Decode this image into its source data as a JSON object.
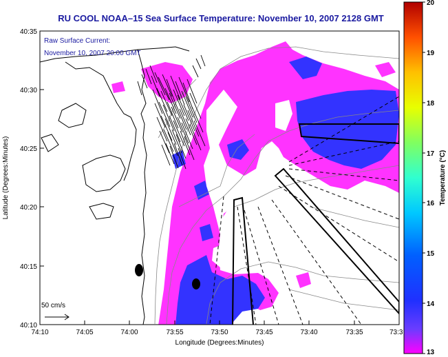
{
  "title": "RU COOL  NOAA–15  Sea Surface Temperature:  November 10, 2007 2128 GMT",
  "caption": {
    "line1": "Raw Surface Current:",
    "line2": "November 10, 2007 20:00 GMT"
  },
  "scale": {
    "label": "50 cm/s"
  },
  "axes": {
    "xlabel": "Longitude (Degrees:Minutes)",
    "ylabel": "Latitude (Degrees:Minutes)",
    "x_ticks": [
      "74:10",
      "74:05",
      "74:00",
      "73:55",
      "73:50",
      "73:45",
      "73:40",
      "73:35",
      "73:3"
    ],
    "y_ticks": [
      "40:35",
      "40:30",
      "40:25",
      "40:20",
      "40:15",
      "40:10"
    ]
  },
  "colorbar": {
    "label": "Temperature (°C)",
    "ticks": [
      "20",
      "19",
      "18",
      "17",
      "16",
      "15",
      "14",
      "13"
    ],
    "range": [
      13,
      20
    ]
  },
  "colors": {
    "title": "#1a1aa0",
    "warm_patch": "#ff33ff",
    "cool_patch": "#3333ff",
    "coast": "#000000",
    "bathymetry": "#888888"
  }
}
